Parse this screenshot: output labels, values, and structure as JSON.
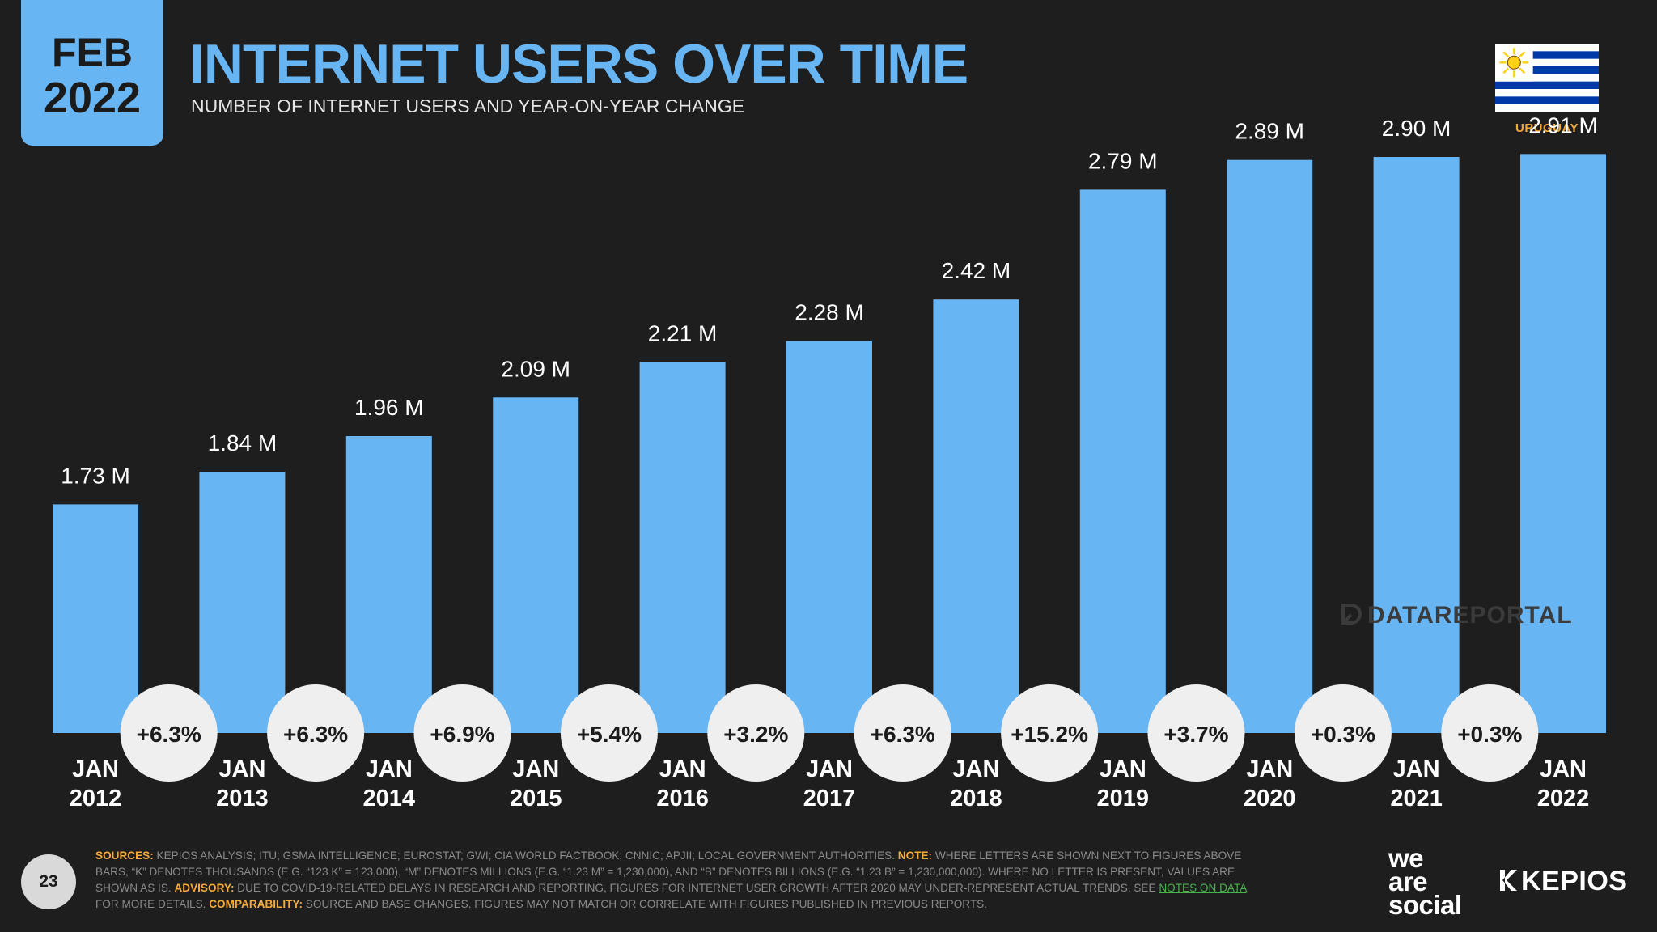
{
  "badge": {
    "month": "FEB",
    "year": "2022"
  },
  "header": {
    "title": "INTERNET USERS OVER TIME",
    "subtitle": "NUMBER OF INTERNET USERS AND YEAR-ON-YEAR CHANGE"
  },
  "country": {
    "name": "URUGUAY",
    "flag_icon": "uruguay-flag-icon"
  },
  "colors": {
    "bar": "#68b5f4",
    "accent": "#68b5f4",
    "badge_text": "#1b1b1b",
    "change_bubble": "#efefef",
    "orange": "#f4a93a",
    "green": "#4caf50",
    "background": "#1e1e1e"
  },
  "chart_data": {
    "type": "bar",
    "title": "INTERNET USERS OVER TIME",
    "subtitle": "NUMBER OF INTERNET USERS AND YEAR-ON-YEAR CHANGE",
    "categories": [
      [
        "JAN",
        "2012"
      ],
      [
        "JAN",
        "2013"
      ],
      [
        "JAN",
        "2014"
      ],
      [
        "JAN",
        "2015"
      ],
      [
        "JAN",
        "2016"
      ],
      [
        "JAN",
        "2017"
      ],
      [
        "JAN",
        "2018"
      ],
      [
        "JAN",
        "2019"
      ],
      [
        "JAN",
        "2020"
      ],
      [
        "JAN",
        "2021"
      ],
      [
        "JAN",
        "2022"
      ]
    ],
    "values": [
      1.73,
      1.84,
      1.96,
      2.09,
      2.21,
      2.28,
      2.42,
      2.79,
      2.89,
      2.9,
      2.91
    ],
    "value_labels": [
      "1.73 M",
      "1.84 M",
      "1.96 M",
      "2.09 M",
      "2.21 M",
      "2.28 M",
      "2.42 M",
      "2.79 M",
      "2.89 M",
      "2.90 M",
      "2.91 M"
    ],
    "yoy_changes": [
      "+6.3%",
      "+6.3%",
      "+6.9%",
      "+5.4%",
      "+3.2%",
      "+6.3%",
      "+15.2%",
      "+3.7%",
      "+0.3%",
      "+0.3%"
    ],
    "unit": "M",
    "ylim": [
      0,
      3.0
    ],
    "grid": false,
    "legend": "none"
  },
  "watermark": "DATAREPORTAL",
  "page_number": "23",
  "footnote": {
    "sources_label": "SOURCES:",
    "sources_text": " KEPIOS ANALYSIS; ITU; GSMA INTELLIGENCE; EUROSTAT; GWI; CIA WORLD FACTBOOK; CNNIC; APJII; LOCAL GOVERNMENT AUTHORITIES. ",
    "note_label": "NOTE:",
    "note_text": " WHERE LETTERS ARE SHOWN NEXT TO FIGURES ABOVE BARS, “K” DENOTES THOUSANDS (E.G. “123 K” = 123,000), “M” DENOTES MILLIONS (E.G. “1.23 M” = 1,230,000), AND “B” DENOTES BILLIONS (E.G. “1.23 B” = 1,230,000,000). WHERE NO LETTER IS PRESENT, VALUES ARE SHOWN AS IS. ",
    "advisory_label": "ADVISORY:",
    "advisory_text": " DUE TO COVID-19-RELATED DELAYS IN RESEARCH AND REPORTING, FIGURES FOR INTERNET USER GROWTH AFTER 2020 MAY UNDER-REPRESENT ACTUAL TRENDS. SEE ",
    "notes_link": "NOTES ON DATA",
    "after_link": " FOR MORE DETAILS. ",
    "comparability_label": "COMPARABILITY:",
    "comparability_text": " SOURCE AND BASE CHANGES. FIGURES MAY NOT MATCH OR CORRELATE WITH FIGURES PUBLISHED IN PREVIOUS REPORTS."
  },
  "logos": {
    "was_line1": "we",
    "was_line2": "are",
    "was_line3": "social",
    "kepios": "KEPIOS"
  }
}
